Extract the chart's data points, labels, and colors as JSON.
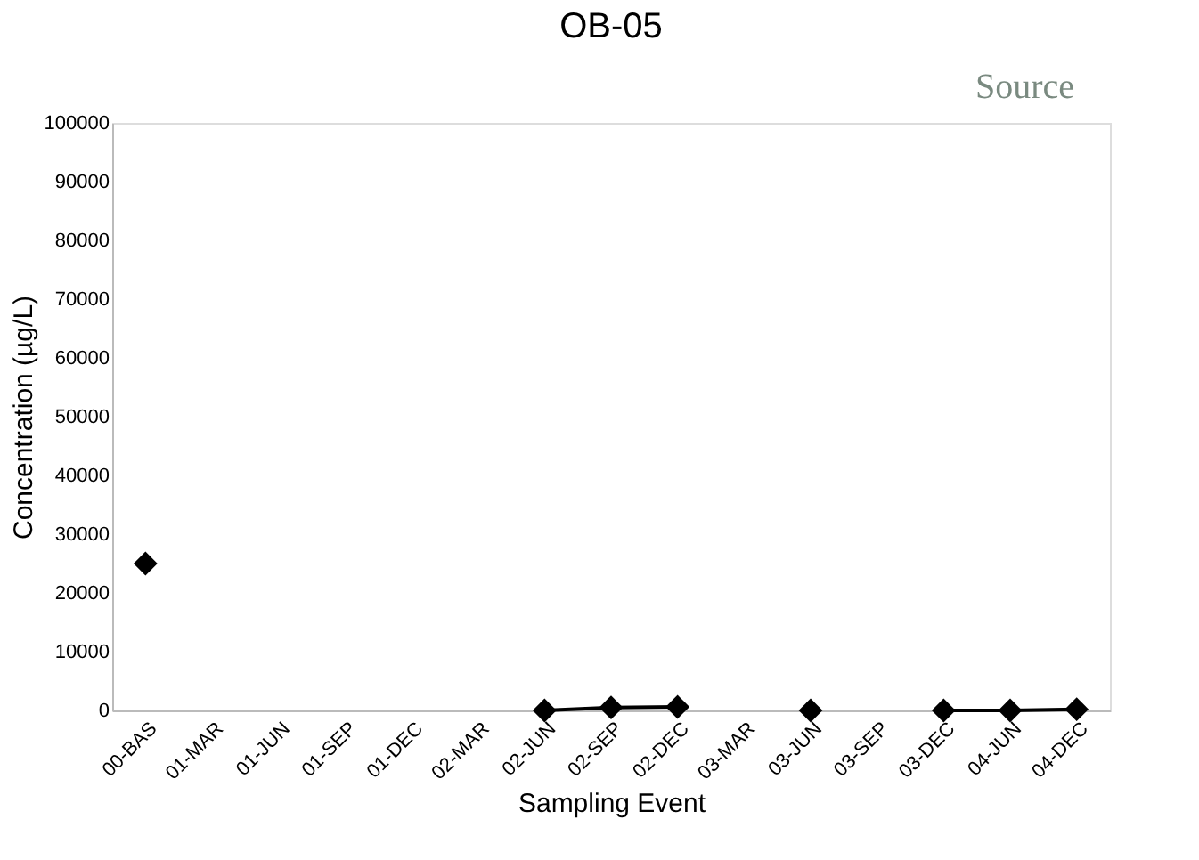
{
  "chart_data": {
    "type": "line",
    "title": "OB-05",
    "xlabel": "Sampling Event",
    "ylabel": "Concentration (µg/L)",
    "annotations": [
      "Source"
    ],
    "categories": [
      "00-BAS",
      "01-MAR",
      "01-JUN",
      "01-SEP",
      "01-DEC",
      "02-MAR",
      "02-JUN",
      "02-SEP",
      "02-DEC",
      "03-MAR",
      "03-JUN",
      "03-SEP",
      "03-DEC",
      "04-JUN",
      "04-DEC"
    ],
    "series": [
      {
        "color": "#000000",
        "values": [
          25000,
          null,
          null,
          null,
          null,
          null,
          0,
          500,
          600,
          null,
          0,
          null,
          0,
          0,
          200
        ]
      }
    ],
    "ylim": [
      0,
      100000
    ],
    "yticks": [
      0,
      10000,
      20000,
      30000,
      40000,
      50000,
      60000,
      70000,
      80000,
      90000,
      100000
    ],
    "grid": false,
    "marker": "diamond",
    "line_style": "solid"
  }
}
